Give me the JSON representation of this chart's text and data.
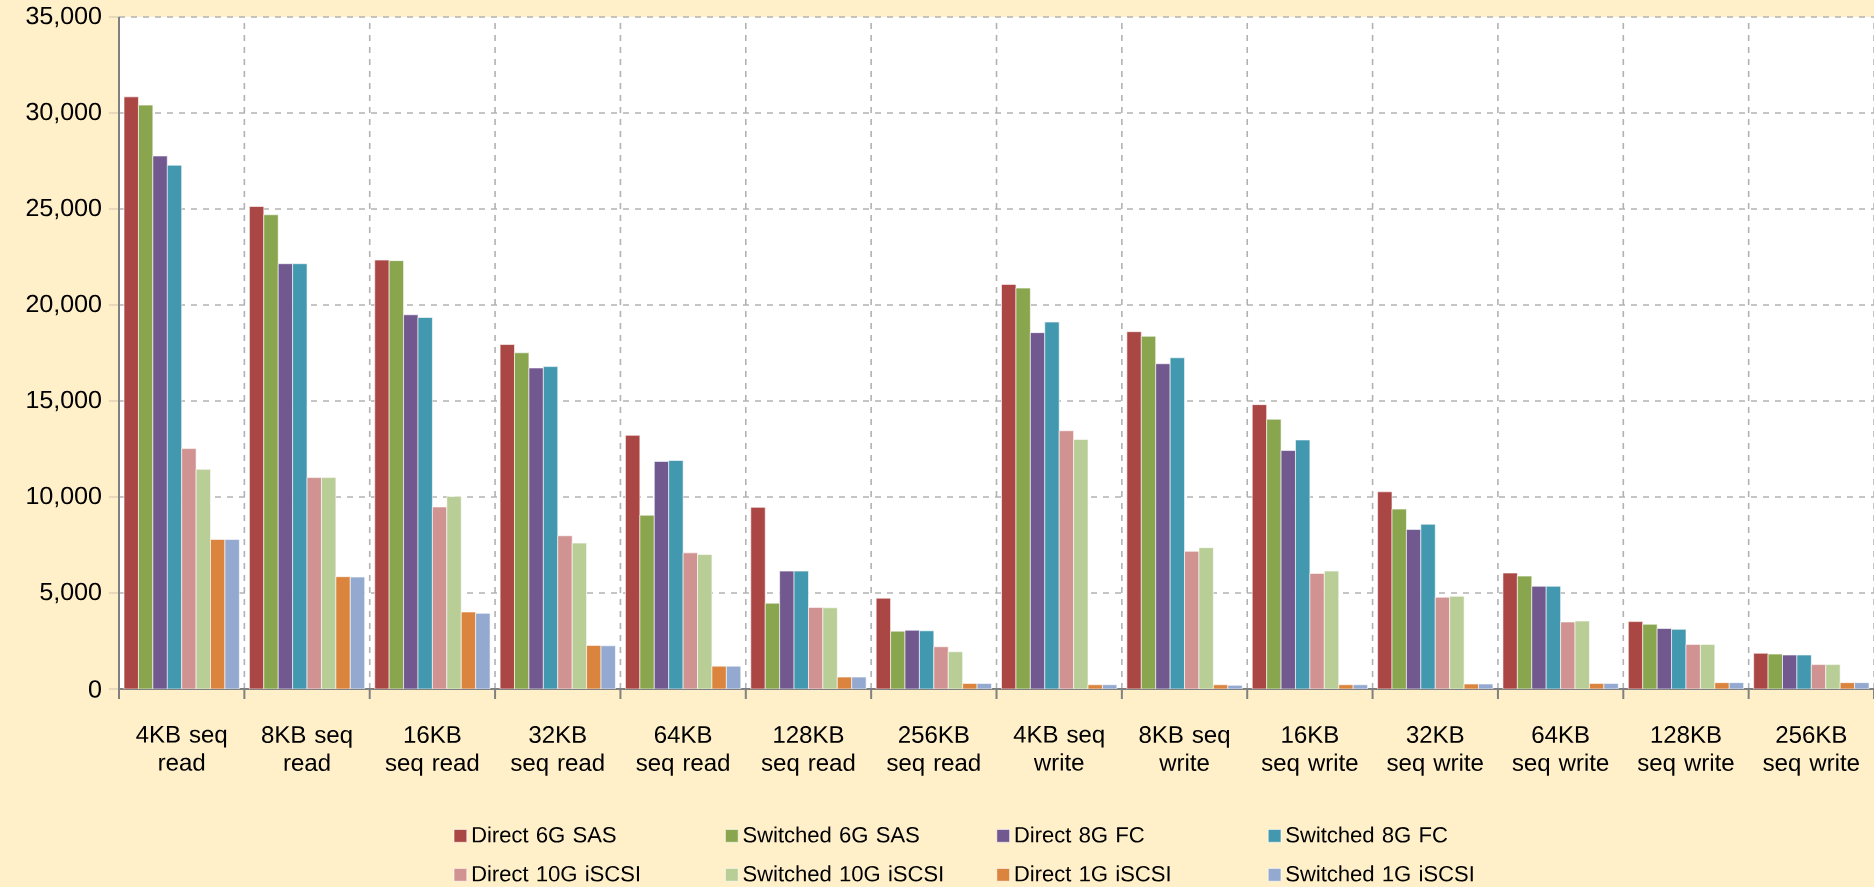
{
  "chart_data": {
    "type": "bar",
    "categories": [
      "4KB seq read",
      "8KB seq read",
      "16KB seq read",
      "32KB seq read",
      "64KB seq read",
      "128KB seq read",
      "256KB seq read",
      "4KB seq write",
      "8KB seq write",
      "16KB seq write",
      "32KB seq write",
      "64KB seq write",
      "128KB seq write",
      "256KB seq write"
    ],
    "series": [
      {
        "name": "Direct 6G SAS",
        "color": "#aa4643",
        "values": [
          30840,
          25130,
          22340,
          17940,
          13210,
          9460,
          4730,
          21070,
          18610,
          14810,
          10270,
          6040,
          3510,
          1860
        ]
      },
      {
        "name": "Switched 6G SAS",
        "color": "#89a54e",
        "values": [
          30410,
          24700,
          22310,
          17510,
          9050,
          4470,
          3010,
          20880,
          18370,
          14050,
          9370,
          5880,
          3370,
          1820
        ]
      },
      {
        "name": "Direct 8G FC",
        "color": "#71588f",
        "values": [
          27760,
          22150,
          19490,
          16720,
          11850,
          6140,
          3060,
          18560,
          16940,
          12420,
          8310,
          5350,
          3150,
          1770
        ]
      },
      {
        "name": "Switched 8G FC",
        "color": "#4198af",
        "values": [
          27280,
          22150,
          19350,
          16790,
          11900,
          6140,
          3030,
          19110,
          17250,
          12970,
          8580,
          5350,
          3110,
          1770
        ]
      },
      {
        "name": "Direct 10G iSCSI",
        "color": "#d19392",
        "values": [
          12520,
          11010,
          9480,
          7980,
          7090,
          4250,
          2200,
          13450,
          7170,
          6020,
          4780,
          3490,
          2320,
          1270
        ]
      },
      {
        "name": "Switched 10G iSCSI",
        "color": "#b9cd96",
        "values": [
          11440,
          11010,
          10030,
          7600,
          7000,
          4230,
          1940,
          13000,
          7360,
          6140,
          4830,
          3540,
          2320,
          1270
        ]
      },
      {
        "name": "Direct 1G iSCSI",
        "color": "#db843d",
        "values": [
          7790,
          5850,
          4010,
          2270,
          1190,
          620,
          290,
          220,
          220,
          220,
          260,
          290,
          330,
          330
        ]
      },
      {
        "name": "Switched 1G iSCSI",
        "color": "#93a9cf",
        "values": [
          7790,
          5830,
          3940,
          2250,
          1190,
          620,
          290,
          220,
          190,
          220,
          260,
          290,
          330,
          330
        ]
      }
    ],
    "ylim": [
      0,
      35000
    ],
    "yticks": [
      {
        "value": 0,
        "label": "0"
      },
      {
        "value": 5000,
        "label": "5,000"
      },
      {
        "value": 10000,
        "label": "10,000"
      },
      {
        "value": 15000,
        "label": "15,000"
      },
      {
        "value": 20000,
        "label": "20,000"
      },
      {
        "value": 25000,
        "label": "25,000"
      },
      {
        "value": 30000,
        "label": "30,000"
      },
      {
        "value": 35000,
        "label": "35,000"
      }
    ],
    "grid": true,
    "legend": "bottom"
  }
}
